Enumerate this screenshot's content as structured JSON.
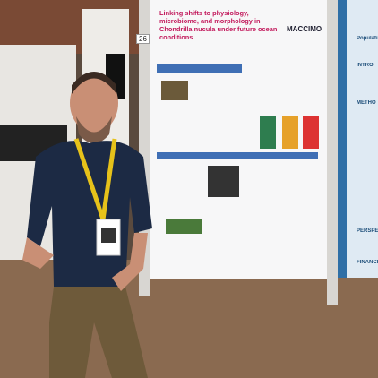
{
  "board_number": "26",
  "poster": {
    "title": "Linking shifts to physiology, microbiome, and morphology in Chondrilla nucula under future ocean conditions",
    "logo": "MACCIMO"
  },
  "right_poster": {
    "headings": [
      "Populati",
      "INTRO",
      "METHO",
      "PERSPECTIVE",
      "FINANCIAL SU"
    ]
  }
}
